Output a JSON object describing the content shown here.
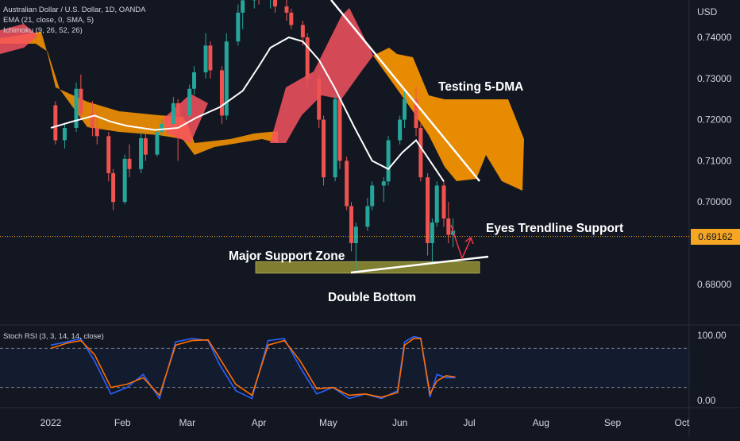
{
  "header": {
    "title": "Australian Dollar / U.S. Dollar, 1D, OANDA",
    "ema_label": "EMA (21, close, 0, SMA, 5)",
    "ichimoku_label": "Ichimoku (9, 26, 52, 26)"
  },
  "oscillator": {
    "label": "Stoch RSI (3, 3, 14, 14, close)"
  },
  "price_axis": {
    "currency": "USD",
    "current_price": "0.69162"
  },
  "annotations": {
    "testing": "Testing 5-DMA",
    "eyes": "Eyes Trendline Support",
    "major": "Major Support Zone",
    "double_bottom": "Double Bottom"
  },
  "colors": {
    "background": "#131722",
    "bull": "#26a69a",
    "bear": "#ef5350",
    "ema": "#ffffff",
    "cloud_bull": "#ff9800",
    "cloud_bear": "#f7525f",
    "support_zone": "#8c8a33",
    "stoch_k": "#2962ff",
    "stoch_d": "#ff6d00",
    "price_tag": "#f5a623"
  },
  "chart_data": [
    {
      "type": "candlestick",
      "title": "Australian Dollar / U.S. Dollar, 1D, OANDA",
      "xlabel": "",
      "ylabel": "USD",
      "x_ticks": [
        "2022",
        "Feb",
        "Mar",
        "Apr",
        "May",
        "Jun",
        "Jul",
        "Aug",
        "Sep",
        "Oct"
      ],
      "y_ticks": [
        "0.74000",
        "0.73000",
        "0.72000",
        "0.71000",
        "0.70000",
        "0.68000"
      ],
      "ylim": [
        0.6765,
        0.7475
      ],
      "last_price": 0.69162,
      "support_zone": [
        0.6827,
        0.6855
      ],
      "series": [
        {
          "name": "EMA (21, close, 0, SMA, 5)",
          "x": [
            "2022-01-01",
            "2022-01-10",
            "2022-01-20",
            "2022-01-27",
            "2022-02-03",
            "2022-02-15",
            "2022-02-25",
            "2022-03-05",
            "2022-03-15",
            "2022-03-25",
            "2022-04-01",
            "2022-04-06",
            "2022-04-14",
            "2022-04-20",
            "2022-04-27",
            "2022-05-04",
            "2022-05-12",
            "2022-05-20",
            "2022-05-27",
            "2022-06-02",
            "2022-06-08",
            "2022-06-14",
            "2022-06-20"
          ],
          "values": [
            0.718,
            0.7195,
            0.721,
            0.7195,
            0.7185,
            0.7175,
            0.718,
            0.7205,
            0.723,
            0.727,
            0.733,
            0.7375,
            0.74,
            0.739,
            0.7345,
            0.7275,
            0.7185,
            0.71,
            0.708,
            0.712,
            0.715,
            0.71,
            0.705
          ]
        }
      ],
      "candles": [
        {
          "d": "2022-01-03",
          "o": 0.7235,
          "h": 0.7245,
          "l": 0.714,
          "c": 0.715
        },
        {
          "d": "2022-01-07",
          "o": 0.715,
          "h": 0.719,
          "l": 0.713,
          "c": 0.718
        },
        {
          "d": "2022-01-12",
          "o": 0.718,
          "h": 0.729,
          "l": 0.717,
          "c": 0.7275
        },
        {
          "d": "2022-01-14",
          "o": 0.7275,
          "h": 0.731,
          "l": 0.72,
          "c": 0.7215
        },
        {
          "d": "2022-01-19",
          "o": 0.7215,
          "h": 0.7245,
          "l": 0.716,
          "c": 0.718
        },
        {
          "d": "2022-01-21",
          "o": 0.718,
          "h": 0.722,
          "l": 0.714,
          "c": 0.716
        },
        {
          "d": "2022-01-26",
          "o": 0.716,
          "h": 0.717,
          "l": 0.705,
          "c": 0.707
        },
        {
          "d": "2022-01-28",
          "o": 0.707,
          "h": 0.708,
          "l": 0.698,
          "c": 0.7
        },
        {
          "d": "2022-02-02",
          "o": 0.7,
          "h": 0.7115,
          "l": 0.6995,
          "c": 0.7105
        },
        {
          "d": "2022-02-04",
          "o": 0.7105,
          "h": 0.714,
          "l": 0.706,
          "c": 0.708
        },
        {
          "d": "2022-02-09",
          "o": 0.708,
          "h": 0.717,
          "l": 0.707,
          "c": 0.7155
        },
        {
          "d": "2022-02-11",
          "o": 0.7155,
          "h": 0.7165,
          "l": 0.71,
          "c": 0.7115
        },
        {
          "d": "2022-02-16",
          "o": 0.7115,
          "h": 0.718,
          "l": 0.711,
          "c": 0.717
        },
        {
          "d": "2022-02-18",
          "o": 0.717,
          "h": 0.72,
          "l": 0.716,
          "c": 0.719
        },
        {
          "d": "2022-02-23",
          "o": 0.719,
          "h": 0.7255,
          "l": 0.718,
          "c": 0.724
        },
        {
          "d": "2022-02-25",
          "o": 0.724,
          "h": 0.725,
          "l": 0.71,
          "c": 0.721
        },
        {
          "d": "2022-03-02",
          "o": 0.721,
          "h": 0.7285,
          "l": 0.72,
          "c": 0.7275
        },
        {
          "d": "2022-03-04",
          "o": 0.7275,
          "h": 0.733,
          "l": 0.726,
          "c": 0.7315
        },
        {
          "d": "2022-03-09",
          "o": 0.7315,
          "h": 0.741,
          "l": 0.73,
          "c": 0.738
        },
        {
          "d": "2022-03-11",
          "o": 0.738,
          "h": 0.739,
          "l": 0.73,
          "c": 0.732
        },
        {
          "d": "2022-03-16",
          "o": 0.732,
          "h": 0.733,
          "l": 0.719,
          "c": 0.721
        },
        {
          "d": "2022-03-18",
          "o": 0.721,
          "h": 0.741,
          "l": 0.72,
          "c": 0.739
        },
        {
          "d": "2022-03-23",
          "o": 0.739,
          "h": 0.748,
          "l": 0.738,
          "c": 0.746
        },
        {
          "d": "2022-03-25",
          "o": 0.746,
          "h": 0.75,
          "l": 0.742,
          "c": 0.749
        },
        {
          "d": "2022-03-30",
          "o": 0.749,
          "h": 0.752,
          "l": 0.747,
          "c": 0.75
        },
        {
          "d": "2022-04-01",
          "o": 0.75,
          "h": 0.753,
          "l": 0.748,
          "c": 0.7495
        },
        {
          "d": "2022-04-06",
          "o": 0.7495,
          "h": 0.754,
          "l": 0.747,
          "c": 0.752
        },
        {
          "d": "2022-04-08",
          "o": 0.752,
          "h": 0.753,
          "l": 0.746,
          "c": 0.7475
        },
        {
          "d": "2022-04-13",
          "o": 0.7475,
          "h": 0.75,
          "l": 0.744,
          "c": 0.746
        },
        {
          "d": "2022-04-15",
          "o": 0.746,
          "h": 0.747,
          "l": 0.742,
          "c": 0.743
        },
        {
          "d": "2022-04-20",
          "o": 0.743,
          "h": 0.744,
          "l": 0.738,
          "c": 0.74
        },
        {
          "d": "2022-04-22",
          "o": 0.74,
          "h": 0.741,
          "l": 0.728,
          "c": 0.73
        },
        {
          "d": "2022-04-27",
          "o": 0.73,
          "h": 0.731,
          "l": 0.718,
          "c": 0.72
        },
        {
          "d": "2022-04-29",
          "o": 0.72,
          "h": 0.721,
          "l": 0.704,
          "c": 0.706
        },
        {
          "d": "2022-05-04",
          "o": 0.706,
          "h": 0.726,
          "l": 0.705,
          "c": 0.725
        },
        {
          "d": "2022-05-06",
          "o": 0.725,
          "h": 0.726,
          "l": 0.708,
          "c": 0.71
        },
        {
          "d": "2022-05-09",
          "o": 0.71,
          "h": 0.711,
          "l": 0.698,
          "c": 0.699
        },
        {
          "d": "2022-05-11",
          "o": 0.699,
          "h": 0.7,
          "l": 0.688,
          "c": 0.69
        },
        {
          "d": "2022-05-13",
          "o": 0.69,
          "h": 0.695,
          "l": 0.683,
          "c": 0.694
        },
        {
          "d": "2022-05-18",
          "o": 0.694,
          "h": 0.701,
          "l": 0.693,
          "c": 0.699
        },
        {
          "d": "2022-05-20",
          "o": 0.699,
          "h": 0.705,
          "l": 0.698,
          "c": 0.704
        },
        {
          "d": "2022-05-25",
          "o": 0.704,
          "h": 0.706,
          "l": 0.7,
          "c": 0.705
        },
        {
          "d": "2022-05-27",
          "o": 0.705,
          "h": 0.716,
          "l": 0.704,
          "c": 0.715
        },
        {
          "d": "2022-06-01",
          "o": 0.715,
          "h": 0.721,
          "l": 0.714,
          "c": 0.72
        },
        {
          "d": "2022-06-03",
          "o": 0.72,
          "h": 0.727,
          "l": 0.718,
          "c": 0.725
        },
        {
          "d": "2022-06-08",
          "o": 0.725,
          "h": 0.728,
          "l": 0.716,
          "c": 0.718
        },
        {
          "d": "2022-06-10",
          "o": 0.718,
          "h": 0.719,
          "l": 0.705,
          "c": 0.706
        },
        {
          "d": "2022-06-13",
          "o": 0.706,
          "h": 0.707,
          "l": 0.687,
          "c": 0.69
        },
        {
          "d": "2022-06-15",
          "o": 0.69,
          "h": 0.696,
          "l": 0.685,
          "c": 0.695
        },
        {
          "d": "2022-06-17",
          "o": 0.695,
          "h": 0.705,
          "l": 0.694,
          "c": 0.704
        },
        {
          "d": "2022-06-20",
          "o": 0.704,
          "h": 0.705,
          "l": 0.694,
          "c": 0.696
        },
        {
          "d": "2022-06-22",
          "o": 0.696,
          "h": 0.7,
          "l": 0.69,
          "c": 0.692
        },
        {
          "d": "2022-06-24",
          "o": 0.692,
          "h": 0.696,
          "l": 0.689,
          "c": 0.693
        }
      ]
    },
    {
      "type": "line",
      "title": "Stoch RSI (3, 3, 14, 14, close)",
      "y_ticks": [
        "100.00",
        "0.00"
      ],
      "ylim": [
        0,
        100
      ],
      "bands": [
        20,
        80
      ],
      "x": [
        "2022-01-01",
        "2022-01-08",
        "2022-01-14",
        "2022-01-20",
        "2022-01-27",
        "2022-02-03",
        "2022-02-10",
        "2022-02-17",
        "2022-02-24",
        "2022-03-03",
        "2022-03-10",
        "2022-03-15",
        "2022-03-22",
        "2022-03-29",
        "2022-04-05",
        "2022-04-12",
        "2022-04-19",
        "2022-04-26",
        "2022-05-03",
        "2022-05-10",
        "2022-05-17",
        "2022-05-24",
        "2022-05-31",
        "2022-06-03",
        "2022-06-07",
        "2022-06-10",
        "2022-06-14",
        "2022-06-17",
        "2022-06-21",
        "2022-06-25"
      ],
      "series": [
        {
          "name": "K",
          "values": [
            85,
            90,
            95,
            60,
            10,
            20,
            40,
            3,
            90,
            95,
            92,
            55,
            15,
            3,
            92,
            95,
            50,
            10,
            20,
            3,
            10,
            3,
            15,
            90,
            98,
            96,
            5,
            40,
            35,
            35
          ]
        },
        {
          "name": "D",
          "values": [
            80,
            88,
            92,
            70,
            20,
            25,
            35,
            8,
            85,
            92,
            93,
            65,
            25,
            8,
            85,
            92,
            60,
            18,
            20,
            8,
            10,
            5,
            12,
            85,
            95,
            95,
            10,
            30,
            38,
            36
          ]
        }
      ]
    }
  ]
}
